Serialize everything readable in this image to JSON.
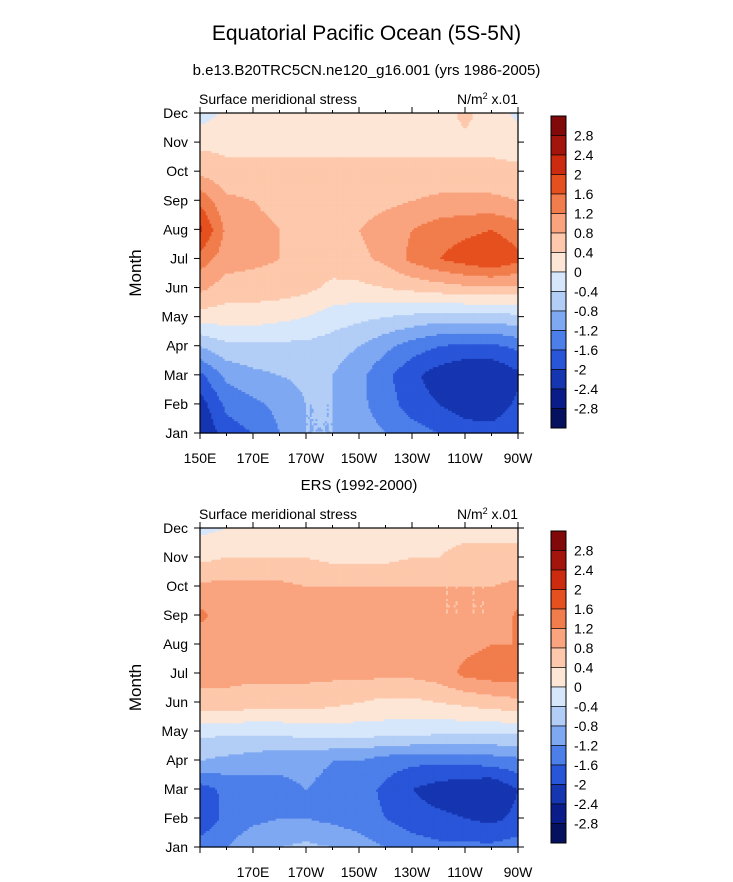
{
  "title": "Equatorial Pacific Ocean (5S-5N)",
  "subtitle": "b.e13.B20TRC5CN.ne120_g16.001 (yrs 1986-2005)",
  "chart_data": [
    {
      "type": "heatmap",
      "panel_title": "",
      "left_label": "Surface meridional stress",
      "units_label": "N/m² x.01",
      "ylabel": "Month",
      "y_ticks": [
        "Jan",
        "Feb",
        "Mar",
        "Apr",
        "May",
        "Jun",
        "Jul",
        "Aug",
        "Sep",
        "Oct",
        "Nov",
        "Dec"
      ],
      "x_ticks": [
        "150E",
        "170E",
        "170W",
        "150W",
        "130W",
        "110W",
        "90W"
      ],
      "x_lon": [
        150,
        170,
        190,
        210,
        230,
        250,
        270
      ],
      "xlim": [
        150,
        270
      ],
      "colorbar_levels": [
        2.8,
        2.4,
        2,
        1.6,
        1.2,
        0.8,
        0.4,
        0,
        -0.4,
        -0.8,
        -1.2,
        -1.6,
        -2,
        -2.4,
        -2.8
      ],
      "grid_lon": [
        150,
        160,
        170,
        180,
        190,
        200,
        210,
        220,
        230,
        240,
        250,
        260,
        270
      ],
      "values": [
        [
          -2.4,
          -1.8,
          -1.6,
          -1.2,
          -0.8,
          -0.8,
          -1.0,
          -1.2,
          -1.4,
          -1.6,
          -1.8,
          -1.8,
          -1.6
        ],
        [
          -2.2,
          -1.5,
          -1.3,
          -1.1,
          -0.8,
          -0.8,
          -1.1,
          -1.4,
          -1.8,
          -2.0,
          -2.2,
          -2.3,
          -1.9
        ],
        [
          -1.7,
          -1.1,
          -0.9,
          -0.8,
          -0.7,
          -0.8,
          -1.1,
          -1.5,
          -1.9,
          -2.2,
          -2.4,
          -2.4,
          -2.1
        ],
        [
          -0.8,
          -0.5,
          -0.5,
          -0.5,
          -0.5,
          -0.6,
          -0.8,
          -1.1,
          -1.4,
          -1.6,
          -1.7,
          -1.7,
          -1.5
        ],
        [
          0.2,
          0.2,
          0.2,
          0.1,
          0.0,
          -0.2,
          -0.3,
          -0.4,
          -0.5,
          -0.6,
          -0.6,
          -0.6,
          -0.5
        ],
        [
          0.9,
          0.6,
          0.6,
          0.6,
          0.5,
          0.3,
          0.3,
          0.4,
          0.5,
          0.6,
          0.7,
          0.7,
          0.7
        ],
        [
          1.4,
          1.0,
          0.9,
          0.8,
          0.6,
          0.6,
          0.7,
          0.9,
          1.3,
          1.6,
          1.8,
          2.0,
          1.7
        ],
        [
          2.1,
          1.1,
          0.9,
          0.8,
          0.7,
          0.7,
          0.8,
          1.0,
          1.2,
          1.4,
          1.5,
          1.6,
          1.4
        ],
        [
          1.5,
          0.9,
          0.8,
          0.7,
          0.6,
          0.6,
          0.6,
          0.7,
          0.8,
          0.9,
          0.9,
          0.9,
          0.8
        ],
        [
          0.7,
          0.5,
          0.5,
          0.5,
          0.5,
          0.5,
          0.5,
          0.5,
          0.5,
          0.5,
          0.5,
          0.5,
          0.5
        ],
        [
          0.3,
          0.3,
          0.3,
          0.3,
          0.3,
          0.3,
          0.3,
          0.3,
          0.3,
          0.3,
          0.3,
          0.3,
          0.2
        ],
        [
          -0.2,
          0.1,
          0.2,
          0.2,
          0.2,
          0.2,
          0.2,
          0.2,
          0.2,
          0.2,
          0.5,
          0.2,
          -0.1
        ]
      ]
    },
    {
      "type": "heatmap",
      "panel_title": "ERS (1992-2000)",
      "left_label": "Surface meridional stress",
      "units_label": "N/m² x.01",
      "ylabel": "Month",
      "y_ticks": [
        "Jan",
        "Feb",
        "Mar",
        "Apr",
        "May",
        "Jun",
        "Jul",
        "Aug",
        "Sep",
        "Oct",
        "Nov",
        "Dec"
      ],
      "x_ticks": [
        "170E",
        "170W",
        "150W",
        "130W",
        "110W",
        "90W"
      ],
      "x_lon": [
        170,
        190,
        210,
        230,
        250,
        270
      ],
      "xlim": [
        150,
        270
      ],
      "colorbar_levels": [
        2.8,
        2.4,
        2,
        1.6,
        1.2,
        0.8,
        0.4,
        0,
        -0.4,
        -0.8,
        -1.2,
        -1.6,
        -2,
        -2.4,
        -2.8
      ],
      "grid_lon": [
        150,
        160,
        170,
        180,
        190,
        200,
        210,
        220,
        230,
        240,
        250,
        260,
        270
      ],
      "values": [
        [
          -1.4,
          -1.2,
          -0.9,
          -0.8,
          -0.7,
          -0.8,
          -1.0,
          -1.2,
          -1.4,
          -1.5,
          -1.5,
          -1.5,
          -1.4
        ],
        [
          -1.9,
          -1.5,
          -1.3,
          -1.2,
          -1.2,
          -1.3,
          -1.4,
          -1.6,
          -1.8,
          -1.9,
          -2.0,
          -2.1,
          -1.9
        ],
        [
          -1.8,
          -1.5,
          -1.4,
          -1.3,
          -1.2,
          -1.3,
          -1.4,
          -1.7,
          -2.0,
          -2.2,
          -2.3,
          -2.4,
          -2.0
        ],
        [
          -0.8,
          -0.9,
          -1.0,
          -1.1,
          -1.1,
          -1.2,
          -1.2,
          -1.4,
          -1.5,
          -1.5,
          -1.5,
          -1.4,
          -1.3
        ],
        [
          -0.3,
          -0.3,
          -0.3,
          -0.3,
          -0.2,
          -0.2,
          -0.2,
          -0.2,
          -0.2,
          -0.3,
          -0.3,
          -0.3,
          -0.3
        ],
        [
          0.7,
          0.7,
          0.6,
          0.6,
          0.6,
          0.5,
          0.4,
          0.3,
          0.3,
          0.4,
          0.5,
          0.6,
          0.7
        ],
        [
          0.9,
          0.9,
          0.9,
          0.9,
          0.9,
          0.9,
          0.9,
          0.9,
          0.9,
          1.0,
          1.3,
          1.4,
          1.4
        ],
        [
          0.9,
          0.9,
          1.0,
          1.0,
          1.0,
          1.0,
          1.1,
          1.1,
          1.0,
          0.9,
          1.1,
          1.2,
          1.2
        ],
        [
          1.3,
          1.0,
          1.0,
          1.0,
          1.0,
          1.0,
          1.0,
          1.0,
          0.9,
          0.8,
          0.8,
          0.8,
          1.3
        ],
        [
          0.9,
          0.9,
          0.9,
          0.9,
          0.8,
          0.8,
          0.8,
          0.8,
          0.8,
          0.8,
          0.8,
          0.8,
          0.9
        ],
        [
          0.3,
          0.4,
          0.4,
          0.4,
          0.4,
          0.3,
          0.3,
          0.3,
          0.4,
          0.4,
          0.5,
          0.5,
          0.5
        ],
        [
          -0.1,
          0.0,
          0.1,
          0.2,
          0.2,
          0.2,
          0.2,
          0.2,
          0.3,
          0.3,
          0.3,
          0.3,
          0.3
        ]
      ]
    }
  ],
  "colors": {
    "2.8": "#7c0b0b",
    "2.4": "#a3140c",
    "2": "#cc2b10",
    "1.6": "#e6501f",
    "1.2": "#f17c4c",
    "0.8": "#f9a47f",
    "0.4": "#fdc8ab",
    "0": "#fde6d6",
    "-0.4": "#d7e7fb",
    "-0.8": "#b2cdf6",
    "-1.2": "#7ea8f1",
    "-1.6": "#4d7fea",
    "-2": "#2955d9",
    "-2.4": "#1535b1",
    "-2.8": "#0a1c8a",
    "below": "#05105e"
  }
}
